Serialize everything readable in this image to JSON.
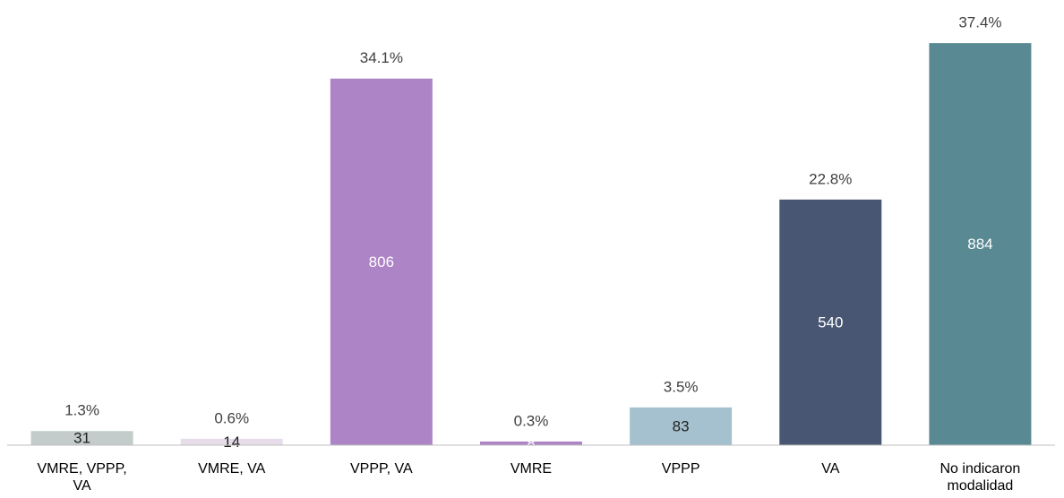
{
  "chart_data": {
    "type": "bar",
    "categories": [
      "VMRE, VPPP, VA",
      "VMRE, VA",
      "VPPP, VA",
      "VMRE",
      "VPPP",
      "VA",
      "No indicaron modalidad"
    ],
    "values": [
      31,
      14,
      806,
      8,
      83,
      540,
      884
    ],
    "shares": [
      {
        "value": 1.3,
        "label": "1.3%"
      },
      {
        "value": 0.6,
        "label": "0.6%"
      },
      {
        "value": 34.1,
        "label": "34.1%"
      },
      {
        "value": 0.3,
        "label": "0.3%"
      },
      {
        "value": 3.5,
        "label": "3.5%"
      },
      {
        "value": 22.8,
        "label": "22.8%"
      },
      {
        "value": 37.4,
        "label": "37.4%"
      }
    ],
    "colors": [
      "#c3cbcb",
      "#e6dcea",
      "#ad84c6",
      "#ad84c6",
      "#a5c1cf",
      "#485673",
      "#598993"
    ],
    "ylim": [
      0,
      900
    ],
    "grid": false
  }
}
